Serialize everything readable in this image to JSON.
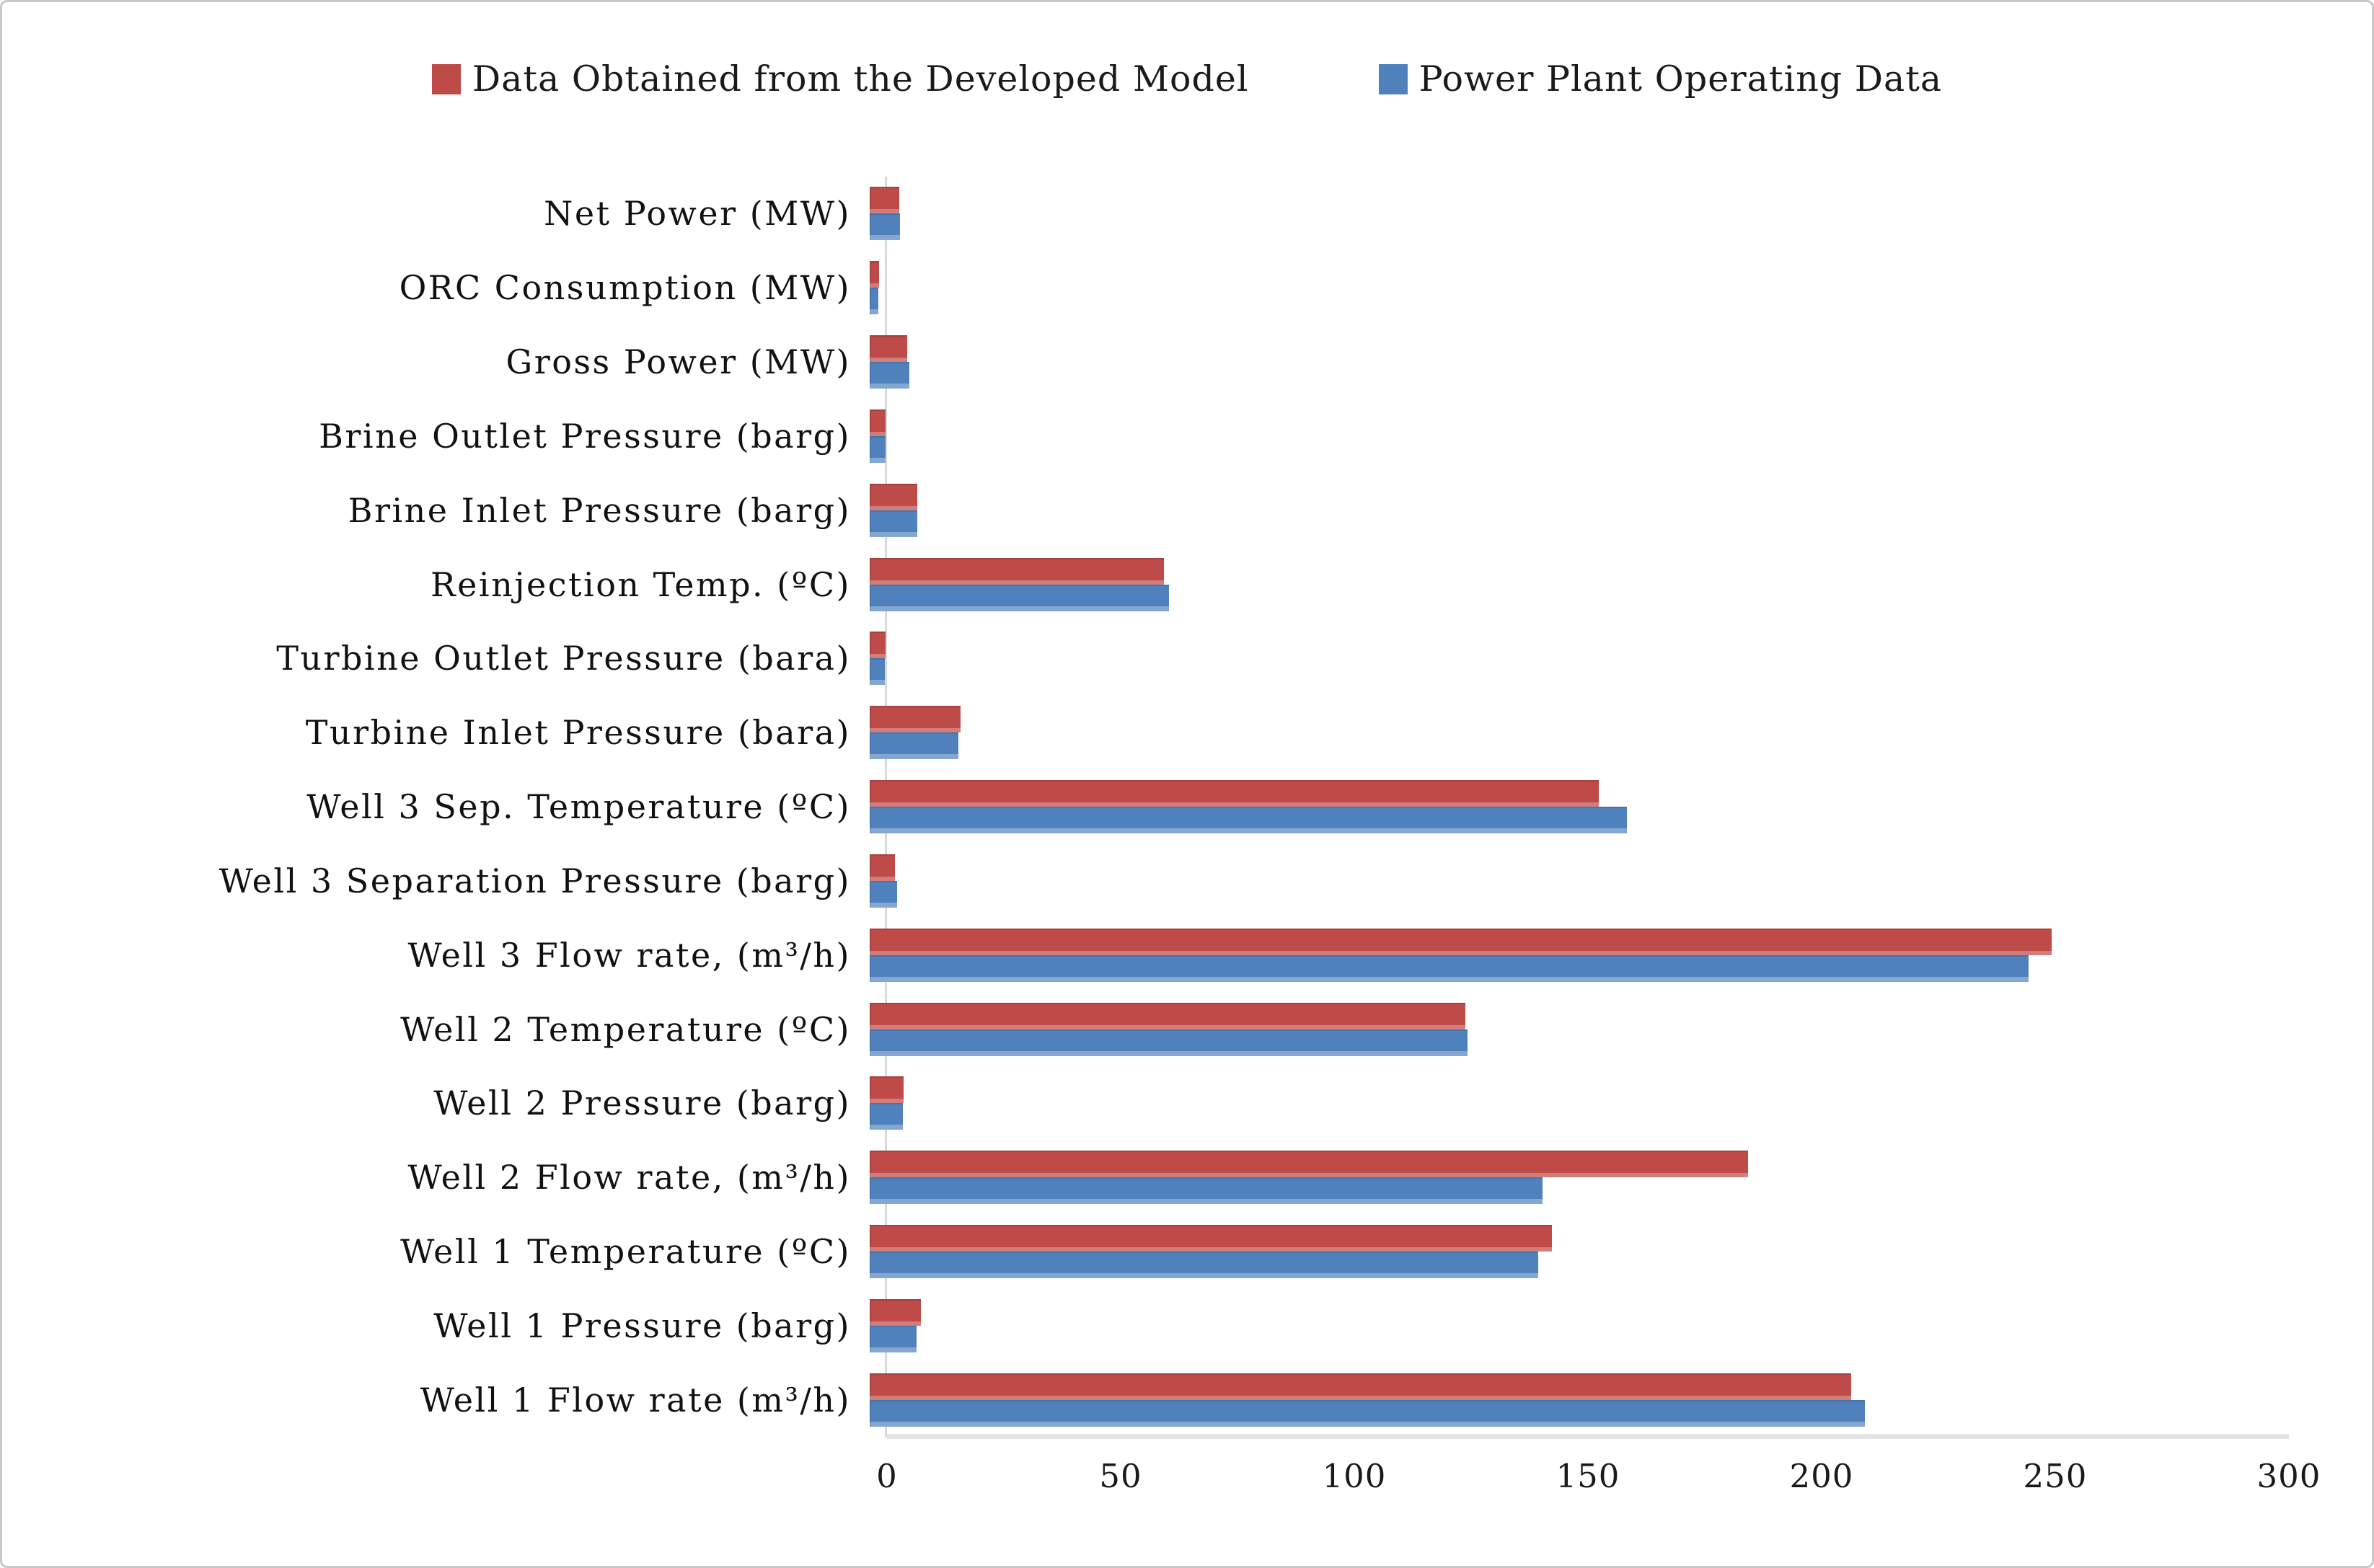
{
  "legend": {
    "items": [
      {
        "label": "Data Obtained from the Developed Model",
        "color": "#be4b48",
        "swatch": "red-square"
      },
      {
        "label": "Power Plant Operating Data",
        "color": "#4f81bd",
        "swatch": "blue-square"
      }
    ]
  },
  "chart_data": {
    "type": "bar",
    "orientation": "horizontal",
    "title": "",
    "xlabel": "",
    "ylabel": "",
    "xlim": [
      0,
      300
    ],
    "x_ticks": [
      0,
      50,
      100,
      150,
      200,
      250,
      300
    ],
    "grid": false,
    "legend_position": "top",
    "categories": [
      "Net Power (MW)",
      "ORC Consumption (MW)",
      "Gross Power (MW)",
      "Brine Outlet Pressure (barg)",
      "Brine Inlet Pressure (barg)",
      "Reinjection Temp. (ºC)",
      "Turbine Outlet Pressure (bara)",
      "Turbine Inlet Pressure (bara)",
      "Well 3 Sep. Temperature (ºC)",
      "Well 3 Separation Pressure (barg)",
      "Well 3 Flow rate, (m³/h)",
      "Well 2 Temperature (ºC)",
      "Well 2 Pressure (barg)",
      "Well 2 Flow rate, (m³/h)",
      "Well 1 Temperature (ºC)",
      "Well 1 Pressure (barg)",
      "Well 1 Flow rate (m³/h)"
    ],
    "series": [
      {
        "name": "Data Obtained from the Developed Model",
        "color": "#be4b48",
        "values": [
          6.4,
          2.0,
          8.0,
          3.4,
          10.2,
          63,
          3.4,
          19.5,
          156,
          5.4,
          253,
          127.5,
          7.3,
          188,
          146,
          11,
          210
        ]
      },
      {
        "name": "Power Plant Operating Data",
        "color": "#4f81bd",
        "values": [
          6.5,
          1.8,
          8.5,
          3.4,
          10.2,
          64,
          3.3,
          19.0,
          162,
          5.9,
          248,
          128,
          7.1,
          144,
          143,
          10,
          213
        ]
      }
    ]
  }
}
